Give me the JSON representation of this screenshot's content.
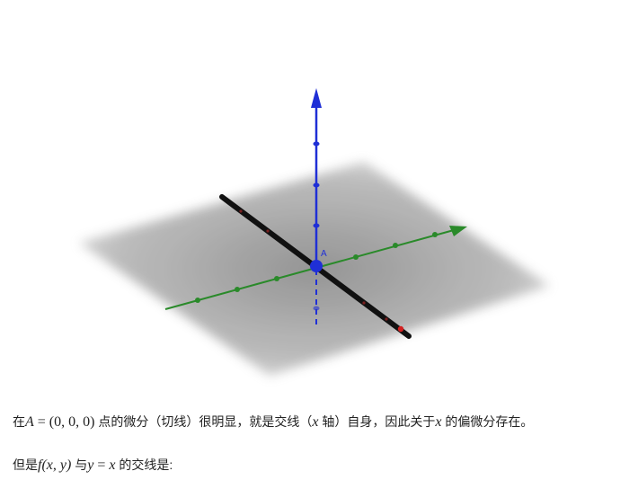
{
  "figure": {
    "point_label": "A",
    "colors": {
      "plane": "#9a9a9a",
      "z_axis": "#1f2fd6",
      "x_axis": "#2a8a2a",
      "tangent_line": "#111111",
      "point": "#1f2fd6",
      "endpoint": "#d22020"
    }
  },
  "text": {
    "p1": {
      "t1": "在",
      "m1_A": "A",
      "m1_eq": " = (0, 0, 0)",
      "t2": " 点的微分（切线）很明显，就是交线（",
      "m2_x": "x",
      "t3": " 轴）自身，因此关于",
      "m3_x": "x",
      "t4": " 的偏微分存在。"
    },
    "p2": {
      "t1": "但是",
      "m_f": "f",
      "m_args": "(x, y)",
      "t2": " 与",
      "m_y": "y",
      "m_eq": " = ",
      "m_x": "x",
      "t3": " 的交线是:"
    }
  }
}
